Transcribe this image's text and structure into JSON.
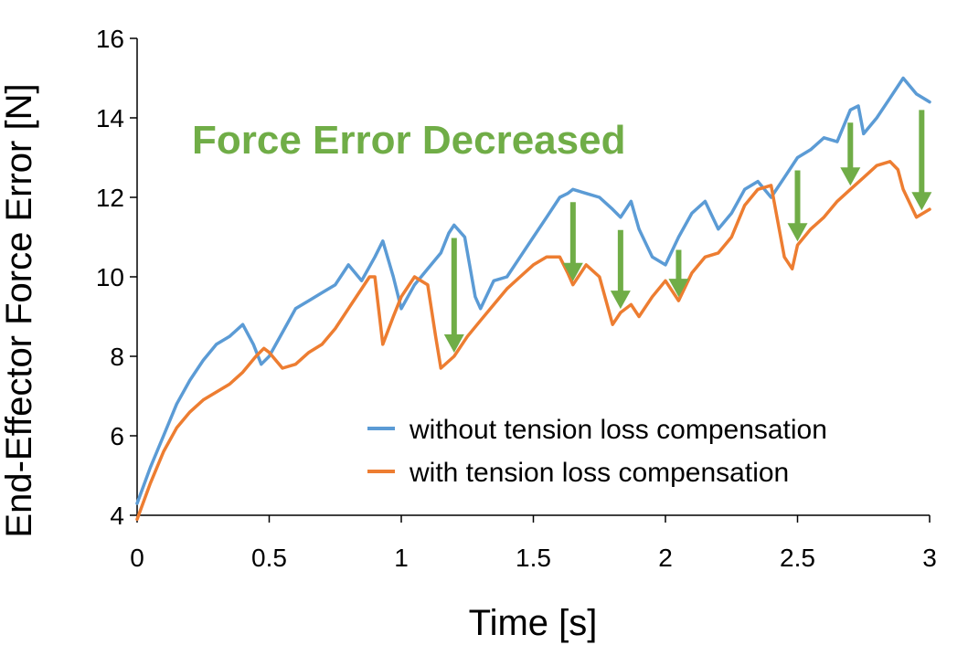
{
  "chart_data": {
    "type": "line",
    "title": "",
    "xlabel": "Time [s]",
    "ylabel": "End-Effector Force Error [N]",
    "xlim": [
      0,
      3
    ],
    "ylim": [
      4,
      16
    ],
    "xticks": [
      0,
      0.5,
      1,
      1.5,
      2,
      2.5,
      3
    ],
    "xtick_labels": [
      "0",
      "0.5",
      "1",
      "1.5",
      "2",
      "2.5",
      "3"
    ],
    "yticks": [
      4,
      6,
      8,
      10,
      12,
      14,
      16
    ],
    "ytick_labels": [
      "4",
      "6",
      "8",
      "10",
      "12",
      "14",
      "16"
    ],
    "grid": false,
    "legend_position": "bottom-right",
    "annotation": {
      "text": "Force Error Decreased",
      "color": "#70ad47",
      "arrows_at_x": [
        1.2,
        1.65,
        1.83,
        2.05,
        2.5,
        2.7,
        2.97
      ]
    },
    "series": [
      {
        "name": "without tension loss compensation",
        "color": "#5b9bd5",
        "x": [
          0,
          0.05,
          0.1,
          0.15,
          0.2,
          0.25,
          0.3,
          0.35,
          0.4,
          0.44,
          0.47,
          0.5,
          0.55,
          0.6,
          0.65,
          0.7,
          0.75,
          0.8,
          0.85,
          0.9,
          0.93,
          0.97,
          1.0,
          1.05,
          1.1,
          1.15,
          1.18,
          1.2,
          1.24,
          1.28,
          1.3,
          1.35,
          1.4,
          1.45,
          1.5,
          1.55,
          1.6,
          1.63,
          1.65,
          1.7,
          1.75,
          1.8,
          1.83,
          1.87,
          1.9,
          1.95,
          2.0,
          2.05,
          2.1,
          2.15,
          2.2,
          2.25,
          2.3,
          2.35,
          2.4,
          2.45,
          2.5,
          2.55,
          2.6,
          2.65,
          2.7,
          2.73,
          2.75,
          2.8,
          2.85,
          2.9,
          2.95,
          3.0
        ],
        "values": [
          4.3,
          5.2,
          6.0,
          6.8,
          7.4,
          7.9,
          8.3,
          8.5,
          8.8,
          8.3,
          7.8,
          8.0,
          8.6,
          9.2,
          9.4,
          9.6,
          9.8,
          10.3,
          9.9,
          10.5,
          10.9,
          10.0,
          9.2,
          9.8,
          10.2,
          10.6,
          11.1,
          11.3,
          11.0,
          9.5,
          9.2,
          9.9,
          10.0,
          10.5,
          11.0,
          11.5,
          12.0,
          12.1,
          12.2,
          12.1,
          12.0,
          11.7,
          11.5,
          11.9,
          11.2,
          10.5,
          10.3,
          11.0,
          11.6,
          11.9,
          11.2,
          11.6,
          12.2,
          12.4,
          12.0,
          12.5,
          13.0,
          13.2,
          13.5,
          13.4,
          14.2,
          14.3,
          13.6,
          14.0,
          14.5,
          15.0,
          14.6,
          14.4
        ]
      },
      {
        "name": "with tension loss compensation",
        "color": "#ed7d31",
        "x": [
          0,
          0.05,
          0.1,
          0.15,
          0.2,
          0.25,
          0.3,
          0.35,
          0.4,
          0.45,
          0.48,
          0.5,
          0.55,
          0.6,
          0.65,
          0.7,
          0.75,
          0.8,
          0.85,
          0.88,
          0.9,
          0.93,
          0.97,
          1.0,
          1.05,
          1.1,
          1.13,
          1.15,
          1.2,
          1.25,
          1.3,
          1.35,
          1.4,
          1.45,
          1.5,
          1.55,
          1.6,
          1.63,
          1.65,
          1.7,
          1.75,
          1.8,
          1.83,
          1.87,
          1.9,
          1.95,
          2.0,
          2.05,
          2.1,
          2.15,
          2.2,
          2.25,
          2.3,
          2.35,
          2.4,
          2.45,
          2.48,
          2.5,
          2.55,
          2.6,
          2.65,
          2.7,
          2.75,
          2.8,
          2.85,
          2.88,
          2.9,
          2.95,
          3.0
        ],
        "values": [
          3.9,
          4.8,
          5.6,
          6.2,
          6.6,
          6.9,
          7.1,
          7.3,
          7.6,
          8.0,
          8.2,
          8.1,
          7.7,
          7.8,
          8.1,
          8.3,
          8.7,
          9.2,
          9.7,
          10.0,
          10.0,
          8.3,
          9.0,
          9.5,
          10.0,
          9.8,
          8.5,
          7.7,
          8.0,
          8.5,
          8.9,
          9.3,
          9.7,
          10.0,
          10.3,
          10.5,
          10.5,
          10.1,
          9.8,
          10.3,
          10.0,
          8.8,
          9.1,
          9.3,
          9.0,
          9.5,
          9.9,
          9.4,
          10.1,
          10.5,
          10.6,
          11.0,
          11.8,
          12.2,
          12.3,
          10.5,
          10.2,
          10.8,
          11.2,
          11.5,
          11.9,
          12.2,
          12.5,
          12.8,
          12.9,
          12.7,
          12.2,
          11.5,
          11.7
        ]
      }
    ]
  }
}
